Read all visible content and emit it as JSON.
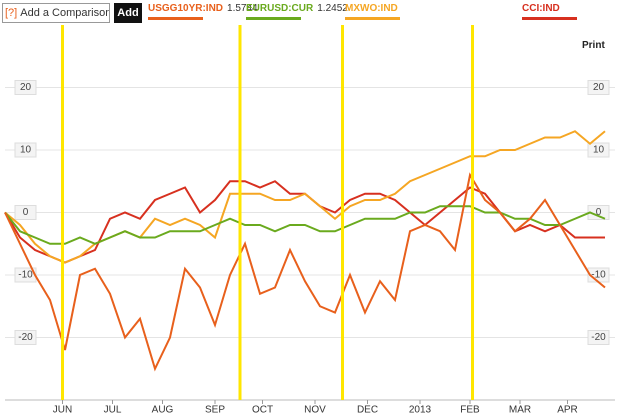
{
  "comparison_placeholder": "Add a Comparison",
  "help": "[?]",
  "add_button": "Add",
  "print": "Print",
  "chart_data": {
    "type": "line",
    "x": [
      0,
      6,
      12,
      18,
      24,
      30,
      36,
      42,
      48,
      54,
      60,
      66,
      72,
      78,
      84,
      90,
      96,
      102,
      108,
      114,
      120,
      126,
      132,
      138,
      144,
      150,
      156,
      162,
      168,
      174,
      180,
      186,
      192,
      198,
      204,
      210,
      216,
      222,
      228,
      234,
      240
    ],
    "xlim": [
      0,
      244
    ],
    "xticks": [
      {
        "value": 23,
        "label": "JUN"
      },
      {
        "value": 43,
        "label": "JUL"
      },
      {
        "value": 63,
        "label": "AUG"
      },
      {
        "value": 84,
        "label": "SEP"
      },
      {
        "value": 103,
        "label": "OCT"
      },
      {
        "value": 124,
        "label": "NOV"
      },
      {
        "value": 145,
        "label": "DEC"
      },
      {
        "value": 166,
        "label": "2013"
      },
      {
        "value": 186,
        "label": "FEB"
      },
      {
        "value": 206,
        "label": "MAR"
      },
      {
        "value": 225,
        "label": "APR"
      }
    ],
    "ylim": [
      -30,
      30
    ],
    "yticks": [
      -20,
      -10,
      0,
      10,
      20
    ],
    "grid": true,
    "markers": [
      23,
      94,
      135,
      187
    ],
    "marker_color": "#ffe600",
    "series": [
      {
        "name": "USGG10YR:IND",
        "last_value": "1.5744",
        "color": "#e8601c",
        "values": [
          0,
          -5,
          -10,
          -14,
          -22,
          -10,
          -9,
          -13,
          -20,
          -17,
          -25,
          -20,
          -9,
          -12,
          -18,
          -10,
          -5,
          -13,
          -12,
          -6,
          -11,
          -15,
          -16,
          -10,
          -16,
          -11,
          -14,
          -3,
          -2,
          -3,
          -6,
          6,
          2,
          0,
          -3,
          -1,
          2,
          -2,
          -6,
          -10,
          -12
        ]
      },
      {
        "name": "EURUSD:CUR",
        "last_value": "1.2452",
        "color": "#6aaa1e",
        "values": [
          0,
          -3,
          -4,
          -5,
          -5,
          -4,
          -5,
          -4,
          -3,
          -4,
          -4,
          -3,
          -3,
          -3,
          -2,
          -1,
          -2,
          -2,
          -3,
          -2,
          -2,
          -3,
          -3,
          -2,
          -1,
          -1,
          -1,
          0,
          0,
          1,
          1,
          1,
          0,
          0,
          -1,
          -1,
          -2,
          -2,
          -1,
          0,
          -1
        ]
      },
      {
        "name": "MXWO:IND",
        "color": "#f5a623",
        "values": [
          0,
          -2,
          -5,
          -7,
          -8,
          -7,
          -5,
          -4,
          -3,
          -4,
          -1,
          -2,
          -1,
          -2,
          -4,
          3,
          3,
          3,
          2,
          2,
          3,
          1,
          -1,
          1,
          2,
          2,
          3,
          5,
          6,
          7,
          8,
          9,
          9,
          10,
          10,
          11,
          12,
          12,
          13,
          11,
          13
        ]
      },
      {
        "name": "CCI:IND",
        "color": "#d7301f",
        "values": [
          0,
          -4,
          -6,
          -7,
          -8,
          -7,
          -6,
          -1,
          0,
          -1,
          2,
          3,
          4,
          0,
          2,
          5,
          5,
          4,
          5,
          3,
          3,
          1,
          0,
          2,
          3,
          3,
          2,
          0,
          -2,
          0,
          2,
          4,
          3,
          0,
          -3,
          -2,
          -3,
          -2,
          -4,
          -4,
          -4
        ]
      }
    ]
  }
}
